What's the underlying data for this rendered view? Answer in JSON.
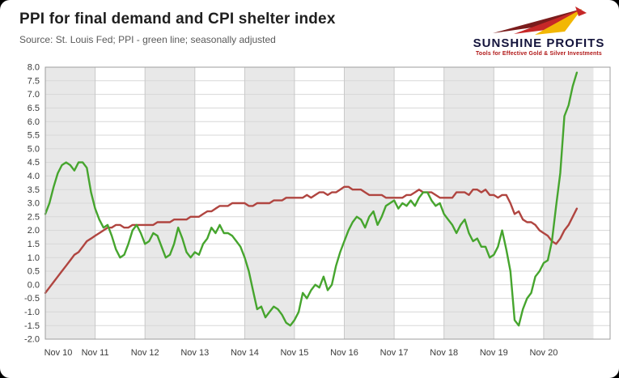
{
  "chart_data": {
    "type": "line",
    "title": "PPI for final demand and CPI shelter index",
    "source_note": "Source: St. Louis Fed; PPI - green line; seasonally adjusted",
    "x_unit": "months since Nov 2010, monthly data",
    "x_domain": [
      0,
      136
    ],
    "x_tick_positions": [
      0,
      12,
      24,
      36,
      48,
      60,
      72,
      84,
      96,
      108,
      120
    ],
    "x_tick_labels": [
      "Nov 10",
      "Nov 11",
      "Nov 12",
      "Nov 13",
      "Nov 14",
      "Nov 15",
      "Nov 16",
      "Nov 17",
      "Nov 18",
      "Nov 19",
      "Nov 20"
    ],
    "ylim": [
      -2,
      8
    ],
    "y_tick_step": 0.5,
    "grid": true,
    "legend": "none (series identified in subtitle: PPI - green line)",
    "band_colors": [
      "#e8e8e8",
      "#ffffff"
    ],
    "plot_border_color": "#9e9e9e",
    "gridline_color": "#d7d7d7",
    "series": [
      {
        "id": "ppi-line",
        "name": "PPI for final demand (YoY %, green line)",
        "color": "#46a52e",
        "values": [
          2.6,
          3.0,
          3.6,
          4.1,
          4.4,
          4.5,
          4.4,
          4.2,
          4.5,
          4.5,
          4.3,
          3.4,
          2.8,
          2.4,
          2.1,
          2.2,
          1.8,
          1.3,
          1.0,
          1.1,
          1.5,
          2.0,
          2.2,
          1.9,
          1.5,
          1.6,
          1.9,
          1.8,
          1.4,
          1.0,
          1.1,
          1.5,
          2.1,
          1.7,
          1.2,
          1.0,
          1.2,
          1.1,
          1.5,
          1.7,
          2.1,
          1.9,
          2.2,
          1.9,
          1.9,
          1.8,
          1.6,
          1.4,
          1.0,
          0.5,
          -0.2,
          -0.9,
          -0.8,
          -1.2,
          -1.0,
          -0.8,
          -0.9,
          -1.1,
          -1.4,
          -1.5,
          -1.3,
          -1.0,
          -0.3,
          -0.5,
          -0.2,
          0.0,
          -0.1,
          0.3,
          -0.2,
          0.0,
          0.7,
          1.2,
          1.6,
          2.0,
          2.3,
          2.5,
          2.4,
          2.1,
          2.5,
          2.7,
          2.2,
          2.5,
          2.9,
          3.0,
          3.1,
          2.8,
          3.0,
          2.9,
          3.1,
          2.9,
          3.2,
          3.4,
          3.4,
          3.1,
          2.9,
          3.0,
          2.6,
          2.4,
          2.2,
          1.9,
          2.2,
          2.4,
          1.9,
          1.6,
          1.7,
          1.4,
          1.4,
          1.0,
          1.1,
          1.4,
          2.0,
          1.3,
          0.5,
          -1.3,
          -1.5,
          -0.9,
          -0.5,
          -0.3,
          0.3,
          0.5,
          0.8,
          0.9,
          1.6,
          2.9,
          4.1,
          6.2,
          6.6,
          7.3,
          7.8
        ]
      },
      {
        "id": "cpi-shelter-line",
        "name": "CPI shelter index (YoY %, red line)",
        "color": "#b04540",
        "values": [
          -0.3,
          -0.1,
          0.1,
          0.3,
          0.5,
          0.7,
          0.9,
          1.1,
          1.2,
          1.4,
          1.6,
          1.7,
          1.8,
          1.9,
          2.0,
          2.1,
          2.1,
          2.2,
          2.2,
          2.1,
          2.1,
          2.2,
          2.2,
          2.2,
          2.2,
          2.2,
          2.2,
          2.3,
          2.3,
          2.3,
          2.3,
          2.4,
          2.4,
          2.4,
          2.4,
          2.5,
          2.5,
          2.5,
          2.6,
          2.7,
          2.7,
          2.8,
          2.9,
          2.9,
          2.9,
          3.0,
          3.0,
          3.0,
          3.0,
          2.9,
          2.9,
          3.0,
          3.0,
          3.0,
          3.0,
          3.1,
          3.1,
          3.1,
          3.2,
          3.2,
          3.2,
          3.2,
          3.2,
          3.3,
          3.2,
          3.3,
          3.4,
          3.4,
          3.3,
          3.4,
          3.4,
          3.5,
          3.6,
          3.6,
          3.5,
          3.5,
          3.5,
          3.4,
          3.3,
          3.3,
          3.3,
          3.3,
          3.2,
          3.2,
          3.2,
          3.2,
          3.2,
          3.3,
          3.3,
          3.4,
          3.5,
          3.4,
          3.4,
          3.4,
          3.3,
          3.2,
          3.2,
          3.2,
          3.2,
          3.4,
          3.4,
          3.4,
          3.3,
          3.5,
          3.5,
          3.4,
          3.5,
          3.3,
          3.3,
          3.2,
          3.3,
          3.3,
          3.0,
          2.6,
          2.7,
          2.4,
          2.3,
          2.3,
          2.2,
          2.0,
          1.9,
          1.8,
          1.6,
          1.5,
          1.7,
          2.0,
          2.2,
          2.5,
          2.8
        ]
      }
    ]
  },
  "logo": {
    "name": "SUNSHINE PROFITS",
    "tagline": "Tools for Effective Gold & Silver Investments"
  }
}
